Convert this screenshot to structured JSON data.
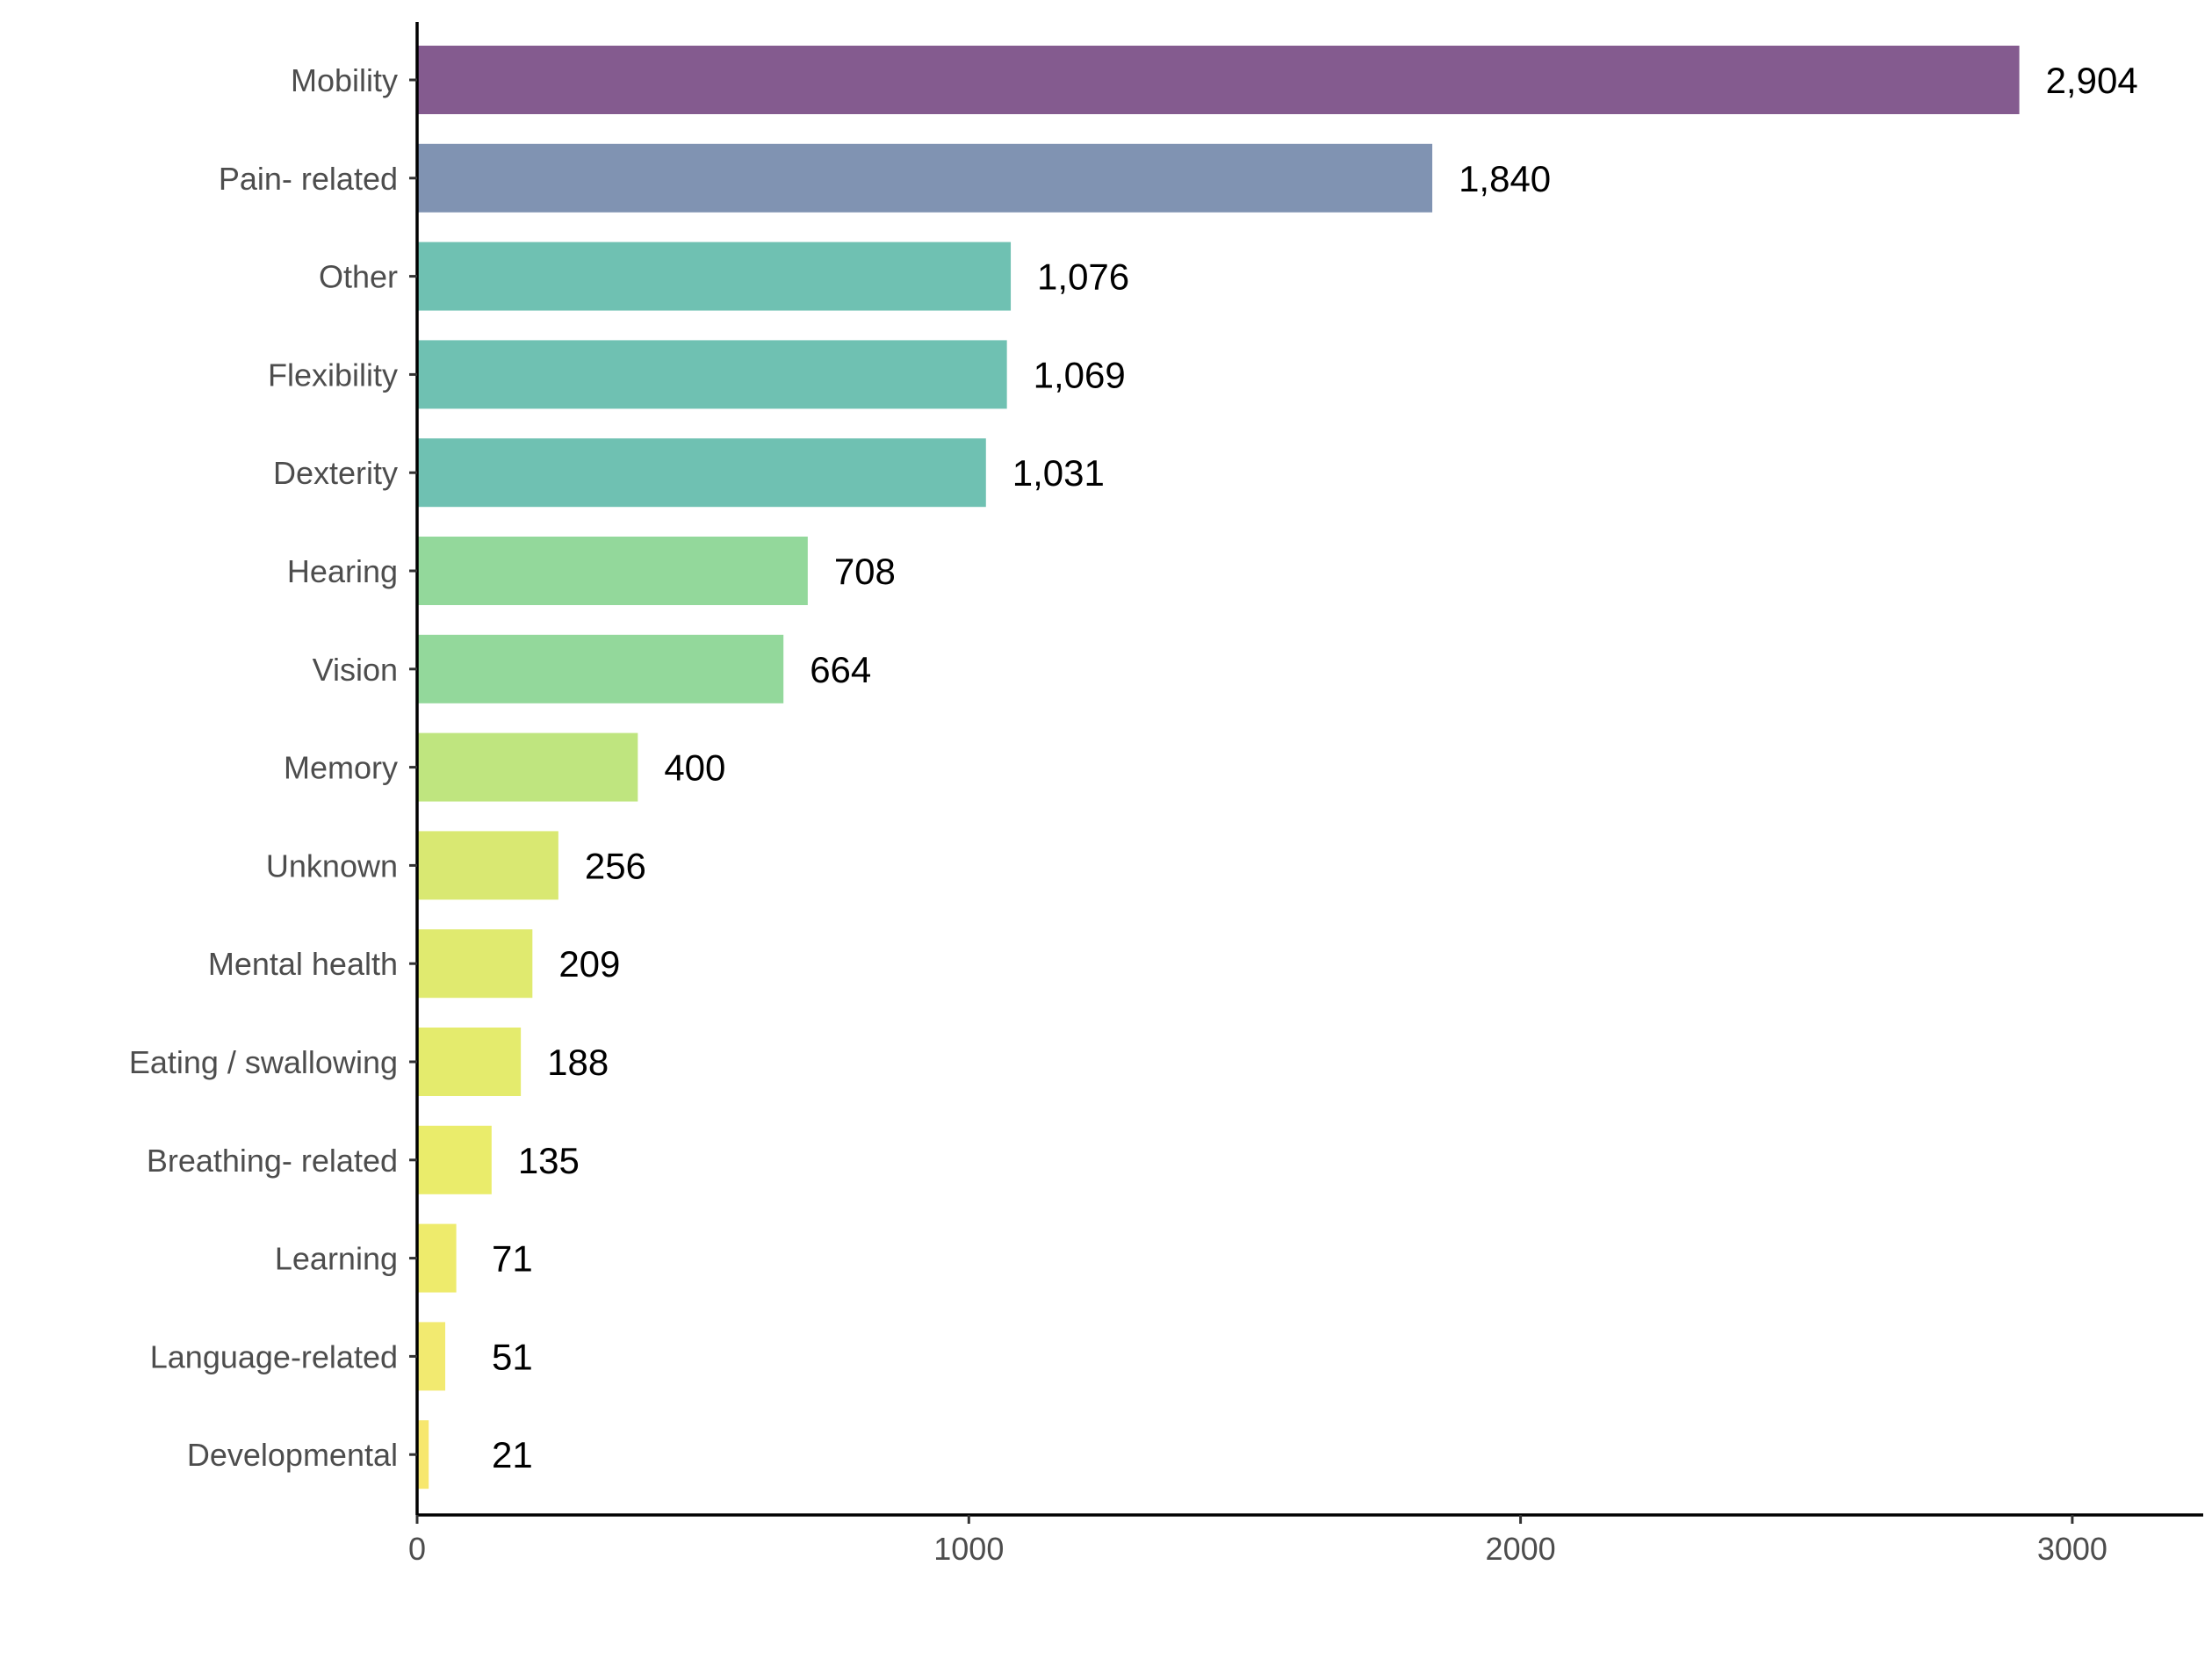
{
  "chart_data": {
    "type": "bar",
    "orientation": "horizontal",
    "title": "",
    "xlabel": "",
    "ylabel": "",
    "xlim": [
      0,
      3250
    ],
    "x_ticks": [
      0,
      1000,
      2000,
      3000
    ],
    "x_tick_labels": [
      "0",
      "1000",
      "2000",
      "3000"
    ],
    "grid": false,
    "legend": "none",
    "categories": [
      "Mobility",
      "Pain- related",
      "Other",
      "Flexibility",
      "Dexterity",
      "Hearing",
      "Vision",
      "Memory",
      "Unknown",
      "Mental health",
      "Eating / swallowing",
      "Breathing- related",
      "Learning",
      "Language-related",
      "Developmental"
    ],
    "values": [
      2904,
      1840,
      1076,
      1069,
      1031,
      708,
      664,
      400,
      256,
      209,
      188,
      135,
      71,
      51,
      21
    ],
    "value_labels": [
      "2,904",
      "1,840",
      "1,076",
      "1,069",
      "1,031",
      "708",
      "664",
      "400",
      "256",
      "209",
      "188",
      "135",
      "71",
      "51",
      "21"
    ],
    "colors": [
      "#845b8f",
      "#8093b2",
      "#6fc1b2",
      "#6fc1b2",
      "#6fc1b2",
      "#93d89b",
      "#93d89b",
      "#bfe57f",
      "#d9e872",
      "#e0ea6f",
      "#e4eb6d",
      "#eaec6b",
      "#eeeb6c",
      "#f2ea70",
      "#f7e76e"
    ]
  }
}
